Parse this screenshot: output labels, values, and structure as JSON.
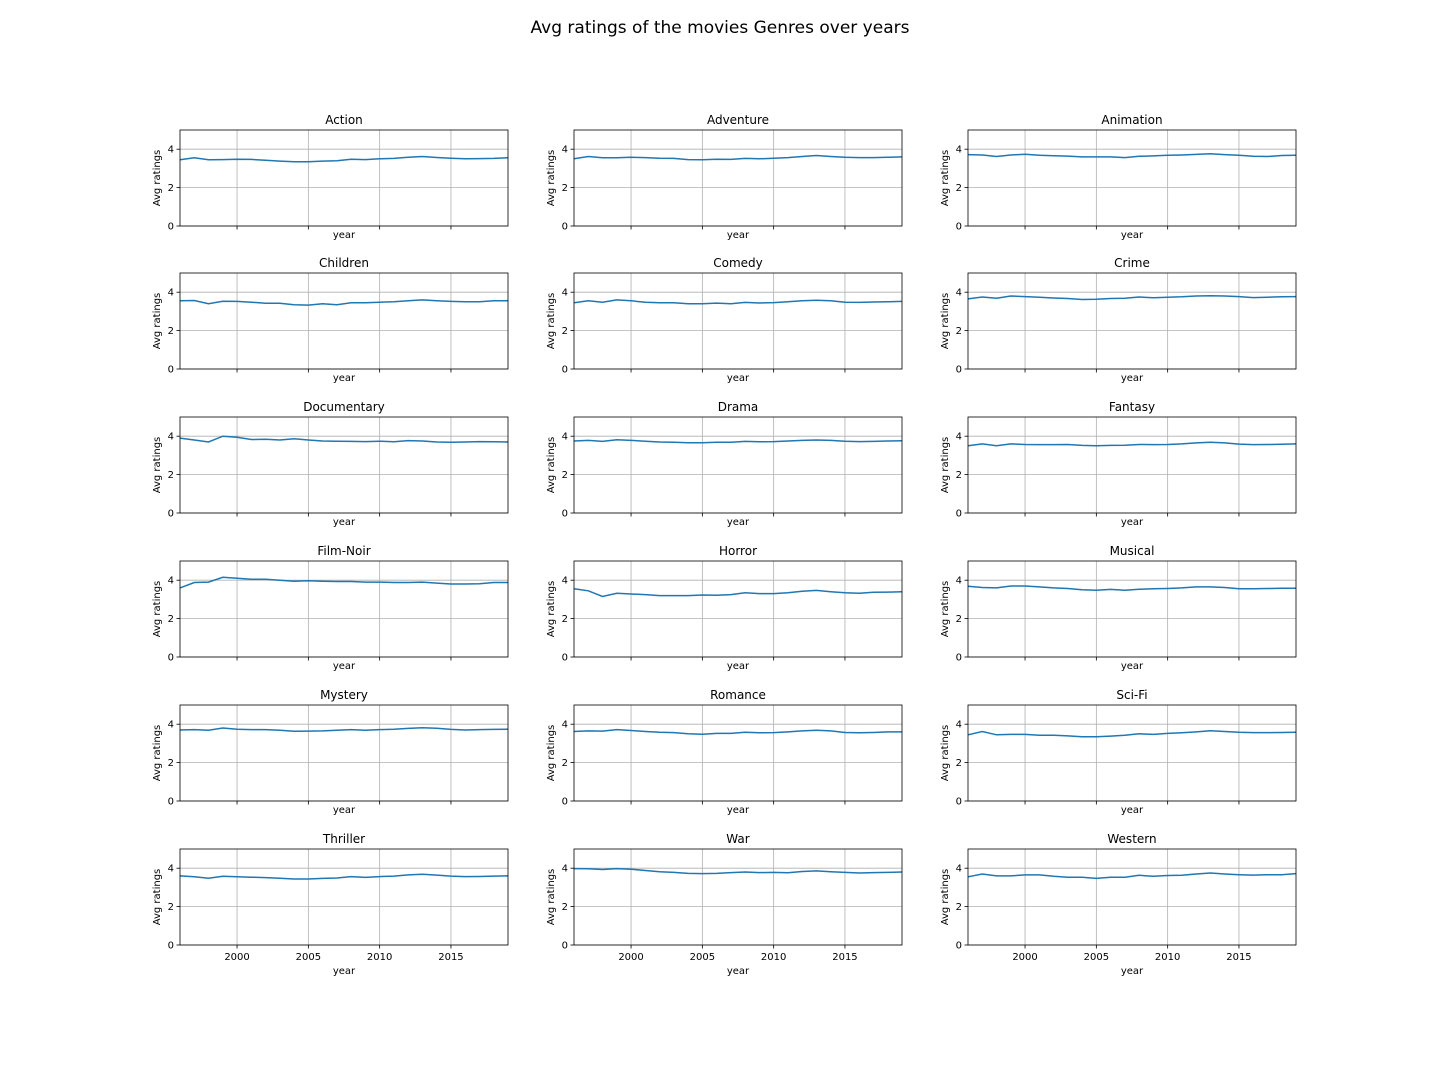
{
  "title": "Avg ratings of the movies Genres over years",
  "chart_data": {
    "type": "line",
    "layout": "6x3 grid of small multiples, shared x axis",
    "xlabel": "year",
    "ylabel": "Avg ratings",
    "xlim": [
      1996,
      2019
    ],
    "ylim": [
      0,
      5
    ],
    "xticks": [
      2000,
      2005,
      2010,
      2015
    ],
    "yticks": [
      0,
      2,
      4
    ],
    "grid": true,
    "line_color": "#1f77b4",
    "x": [
      1996,
      1997,
      1998,
      1999,
      2000,
      2001,
      2002,
      2003,
      2004,
      2005,
      2006,
      2007,
      2008,
      2009,
      2010,
      2011,
      2012,
      2013,
      2014,
      2015,
      2016,
      2017,
      2018,
      2019
    ],
    "series": [
      {
        "name": "Action",
        "values": [
          3.45,
          3.55,
          3.45,
          3.46,
          3.48,
          3.47,
          3.42,
          3.38,
          3.35,
          3.35,
          3.38,
          3.4,
          3.48,
          3.46,
          3.5,
          3.52,
          3.58,
          3.62,
          3.57,
          3.53,
          3.5,
          3.51,
          3.52,
          3.55
        ]
      },
      {
        "name": "Adventure",
        "values": [
          3.5,
          3.62,
          3.55,
          3.55,
          3.58,
          3.56,
          3.53,
          3.52,
          3.46,
          3.45,
          3.48,
          3.47,
          3.52,
          3.5,
          3.53,
          3.56,
          3.62,
          3.67,
          3.62,
          3.58,
          3.56,
          3.56,
          3.58,
          3.6
        ]
      },
      {
        "name": "Animation",
        "values": [
          3.72,
          3.7,
          3.62,
          3.7,
          3.74,
          3.68,
          3.66,
          3.64,
          3.6,
          3.6,
          3.6,
          3.56,
          3.63,
          3.65,
          3.68,
          3.7,
          3.73,
          3.76,
          3.72,
          3.68,
          3.63,
          3.62,
          3.67,
          3.68
        ]
      },
      {
        "name": "Children",
        "values": [
          3.55,
          3.57,
          3.4,
          3.53,
          3.52,
          3.48,
          3.42,
          3.42,
          3.35,
          3.33,
          3.4,
          3.35,
          3.45,
          3.45,
          3.48,
          3.5,
          3.55,
          3.6,
          3.55,
          3.52,
          3.5,
          3.5,
          3.55,
          3.55
        ]
      },
      {
        "name": "Comedy",
        "values": [
          3.45,
          3.55,
          3.48,
          3.6,
          3.55,
          3.48,
          3.45,
          3.45,
          3.4,
          3.4,
          3.43,
          3.4,
          3.47,
          3.44,
          3.46,
          3.5,
          3.55,
          3.58,
          3.55,
          3.48,
          3.47,
          3.49,
          3.5,
          3.52
        ]
      },
      {
        "name": "Crime",
        "values": [
          3.65,
          3.75,
          3.68,
          3.8,
          3.77,
          3.74,
          3.7,
          3.67,
          3.62,
          3.63,
          3.67,
          3.69,
          3.75,
          3.71,
          3.74,
          3.76,
          3.8,
          3.82,
          3.8,
          3.77,
          3.72,
          3.74,
          3.76,
          3.77
        ]
      },
      {
        "name": "Documentary",
        "values": [
          3.9,
          3.8,
          3.7,
          4.0,
          3.95,
          3.83,
          3.84,
          3.8,
          3.87,
          3.8,
          3.75,
          3.74,
          3.73,
          3.72,
          3.74,
          3.71,
          3.77,
          3.75,
          3.7,
          3.68,
          3.7,
          3.72,
          3.71,
          3.7
        ]
      },
      {
        "name": "Drama",
        "values": [
          3.75,
          3.78,
          3.73,
          3.82,
          3.78,
          3.74,
          3.7,
          3.69,
          3.66,
          3.66,
          3.68,
          3.69,
          3.73,
          3.71,
          3.72,
          3.75,
          3.78,
          3.8,
          3.78,
          3.74,
          3.72,
          3.73,
          3.75,
          3.76
        ]
      },
      {
        "name": "Fantasy",
        "values": [
          3.5,
          3.6,
          3.5,
          3.6,
          3.57,
          3.56,
          3.56,
          3.57,
          3.52,
          3.5,
          3.52,
          3.53,
          3.57,
          3.56,
          3.57,
          3.6,
          3.65,
          3.68,
          3.65,
          3.59,
          3.56,
          3.57,
          3.58,
          3.6
        ]
      },
      {
        "name": "Film-Noir",
        "values": [
          3.6,
          3.88,
          3.9,
          4.15,
          4.1,
          4.05,
          4.05,
          4.0,
          3.95,
          3.97,
          3.95,
          3.93,
          3.93,
          3.9,
          3.9,
          3.88,
          3.88,
          3.9,
          3.85,
          3.8,
          3.8,
          3.82,
          3.88,
          3.88
        ]
      },
      {
        "name": "Horror",
        "values": [
          3.55,
          3.45,
          3.15,
          3.32,
          3.28,
          3.25,
          3.2,
          3.2,
          3.2,
          3.23,
          3.22,
          3.25,
          3.35,
          3.3,
          3.3,
          3.35,
          3.42,
          3.47,
          3.4,
          3.35,
          3.32,
          3.37,
          3.38,
          3.4
        ]
      },
      {
        "name": "Musical",
        "values": [
          3.68,
          3.62,
          3.6,
          3.7,
          3.7,
          3.65,
          3.6,
          3.57,
          3.5,
          3.48,
          3.52,
          3.48,
          3.53,
          3.55,
          3.57,
          3.6,
          3.65,
          3.65,
          3.62,
          3.55,
          3.55,
          3.57,
          3.58,
          3.58
        ]
      },
      {
        "name": "Mystery",
        "values": [
          3.7,
          3.72,
          3.68,
          3.8,
          3.74,
          3.72,
          3.72,
          3.68,
          3.63,
          3.64,
          3.65,
          3.68,
          3.72,
          3.68,
          3.72,
          3.74,
          3.78,
          3.82,
          3.79,
          3.73,
          3.7,
          3.72,
          3.73,
          3.74
        ]
      },
      {
        "name": "Romance",
        "values": [
          3.62,
          3.65,
          3.64,
          3.72,
          3.67,
          3.62,
          3.58,
          3.56,
          3.5,
          3.48,
          3.52,
          3.52,
          3.58,
          3.55,
          3.56,
          3.6,
          3.65,
          3.68,
          3.65,
          3.57,
          3.55,
          3.57,
          3.6,
          3.6
        ]
      },
      {
        "name": "Sci-Fi",
        "values": [
          3.45,
          3.62,
          3.45,
          3.47,
          3.47,
          3.42,
          3.42,
          3.39,
          3.35,
          3.35,
          3.38,
          3.42,
          3.5,
          3.47,
          3.52,
          3.55,
          3.6,
          3.66,
          3.62,
          3.58,
          3.56,
          3.56,
          3.57,
          3.58
        ]
      },
      {
        "name": "Thriller",
        "values": [
          3.6,
          3.55,
          3.48,
          3.58,
          3.55,
          3.53,
          3.51,
          3.48,
          3.44,
          3.44,
          3.47,
          3.49,
          3.56,
          3.52,
          3.56,
          3.59,
          3.65,
          3.68,
          3.64,
          3.59,
          3.56,
          3.57,
          3.59,
          3.6
        ]
      },
      {
        "name": "War",
        "values": [
          3.98,
          3.97,
          3.93,
          3.98,
          3.95,
          3.88,
          3.82,
          3.78,
          3.73,
          3.72,
          3.73,
          3.77,
          3.8,
          3.77,
          3.78,
          3.76,
          3.83,
          3.86,
          3.82,
          3.78,
          3.75,
          3.77,
          3.78,
          3.8
        ]
      },
      {
        "name": "Western",
        "values": [
          3.55,
          3.7,
          3.6,
          3.6,
          3.65,
          3.65,
          3.58,
          3.53,
          3.53,
          3.47,
          3.53,
          3.53,
          3.63,
          3.58,
          3.62,
          3.63,
          3.7,
          3.75,
          3.7,
          3.66,
          3.64,
          3.66,
          3.66,
          3.72
        ]
      }
    ]
  }
}
